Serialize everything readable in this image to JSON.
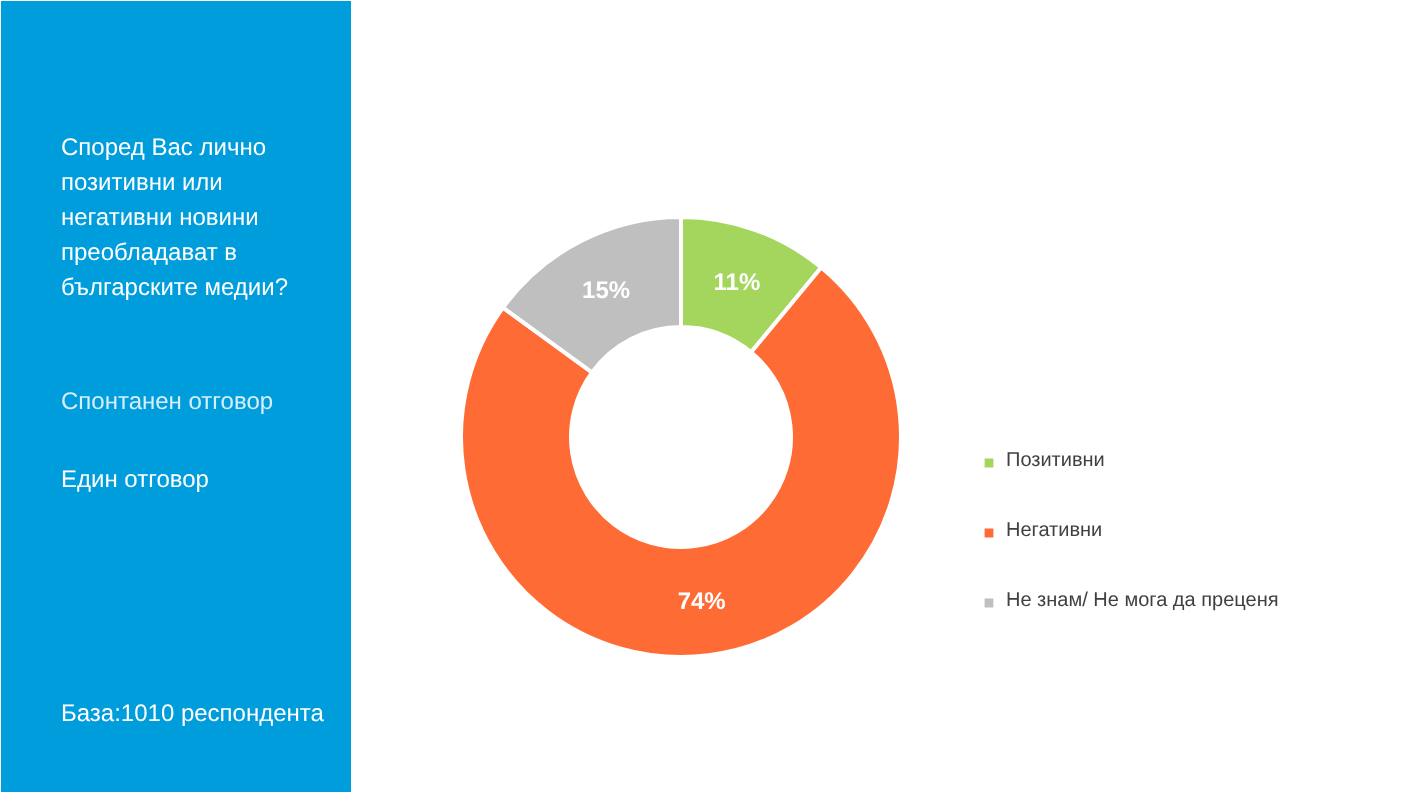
{
  "chart_data": {
    "type": "donut",
    "title": "Според Вас лично позитивни или негативни новини преобладават в българските медии?",
    "subtitle": "Спонтанен отговор",
    "annotations": [
      "Един отговор",
      "База:1010 респондента"
    ],
    "categories": [
      "Позитивни",
      "Негативни",
      "Не знам/ Не мога да преценя"
    ],
    "values": [
      11,
      74,
      15
    ],
    "colors": [
      "#a4d65e",
      "#ff6b35",
      "#bfbfbf"
    ],
    "value_labels": [
      "11%",
      "74%",
      "15%"
    ],
    "legend": "right"
  }
}
